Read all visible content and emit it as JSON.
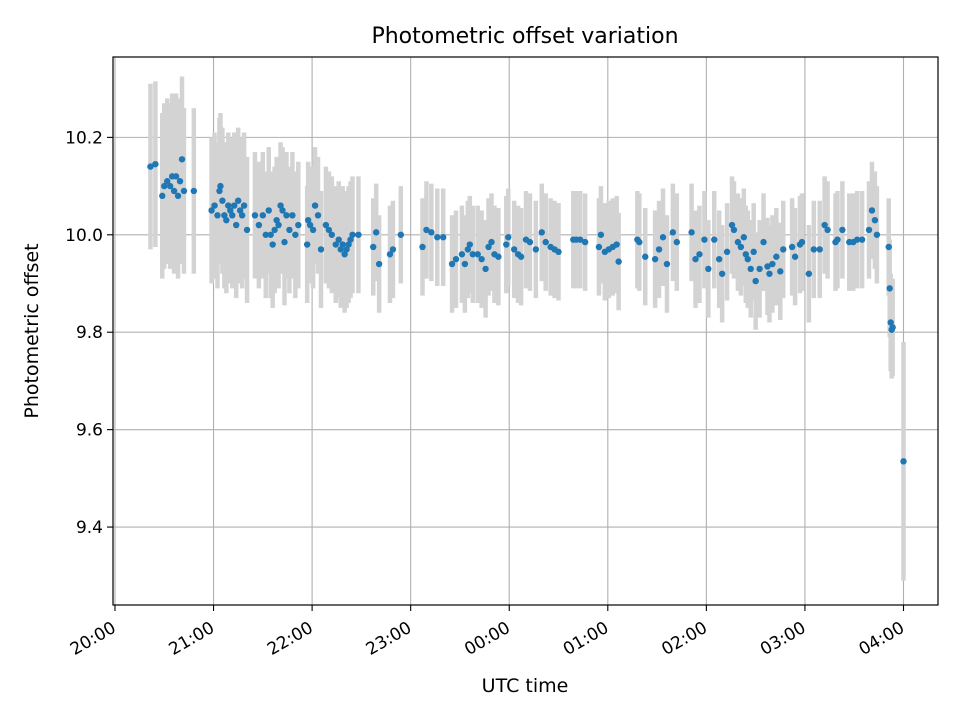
{
  "chart_data": {
    "type": "scatter",
    "title": "Photometric offset variation",
    "xlabel": "UTC time",
    "ylabel": "Photometric offset",
    "x_unit": "hours (UTC, continuing past midnight)",
    "xlim": [
      19.98,
      28.35
    ],
    "ylim": [
      9.24,
      10.365
    ],
    "grid": true,
    "legend": "none",
    "x_ticks": [
      {
        "value": 20,
        "label": "20:00"
      },
      {
        "value": 21,
        "label": "21:00"
      },
      {
        "value": 22,
        "label": "22:00"
      },
      {
        "value": 23,
        "label": "23:00"
      },
      {
        "value": 24,
        "label": "00:00"
      },
      {
        "value": 25,
        "label": "01:00"
      },
      {
        "value": 26,
        "label": "02:00"
      },
      {
        "value": 27,
        "label": "03:00"
      },
      {
        "value": 28,
        "label": "04:00"
      }
    ],
    "y_ticks": [
      {
        "value": 9.4,
        "label": "9.4"
      },
      {
        "value": 9.6,
        "label": "9.6"
      },
      {
        "value": 9.8,
        "label": "9.8"
      },
      {
        "value": 10.0,
        "label": "10.0"
      },
      {
        "value": 10.2,
        "label": "10.2"
      }
    ],
    "colors": {
      "points": "#1f77b4",
      "errorbars": "#d3d3d3",
      "grid": "#b0b0b0"
    },
    "series": [
      {
        "points": [
          [
            20.36,
            10.14,
            0.17
          ],
          [
            20.41,
            10.145,
            0.17
          ],
          [
            20.48,
            10.08,
            0.17
          ],
          [
            20.5,
            10.1,
            0.17
          ],
          [
            20.53,
            10.11,
            0.17
          ],
          [
            20.56,
            10.1,
            0.17
          ],
          [
            20.58,
            10.12,
            0.17
          ],
          [
            20.6,
            10.09,
            0.17
          ],
          [
            20.62,
            10.12,
            0.17
          ],
          [
            20.64,
            10.08,
            0.17
          ],
          [
            20.66,
            10.11,
            0.17
          ],
          [
            20.68,
            10.155,
            0.17
          ],
          [
            20.7,
            10.09,
            0.17
          ],
          [
            20.8,
            10.09,
            0.17
          ],
          [
            20.98,
            10.05,
            0.15
          ],
          [
            21.01,
            10.06,
            0.15
          ],
          [
            21.04,
            10.04,
            0.15
          ],
          [
            21.06,
            10.09,
            0.15
          ],
          [
            21.07,
            10.1,
            0.15
          ],
          [
            21.09,
            10.07,
            0.15
          ],
          [
            21.11,
            10.04,
            0.15
          ],
          [
            21.13,
            10.03,
            0.15
          ],
          [
            21.15,
            10.06,
            0.15
          ],
          [
            21.17,
            10.05,
            0.15
          ],
          [
            21.19,
            10.04,
            0.15
          ],
          [
            21.21,
            10.06,
            0.15
          ],
          [
            21.23,
            10.02,
            0.15
          ],
          [
            21.25,
            10.07,
            0.15
          ],
          [
            21.27,
            10.05,
            0.15
          ],
          [
            21.29,
            10.04,
            0.15
          ],
          [
            21.31,
            10.06,
            0.15
          ],
          [
            21.34,
            10.01,
            0.15
          ],
          [
            21.42,
            10.04,
            0.13
          ],
          [
            21.46,
            10.02,
            0.13
          ],
          [
            21.5,
            10.04,
            0.13
          ],
          [
            21.53,
            10.0,
            0.13
          ],
          [
            21.56,
            10.05,
            0.13
          ],
          [
            21.58,
            10.0,
            0.13
          ],
          [
            21.6,
            9.98,
            0.13
          ],
          [
            21.62,
            10.01,
            0.13
          ],
          [
            21.64,
            10.03,
            0.13
          ],
          [
            21.66,
            10.02,
            0.13
          ],
          [
            21.68,
            10.06,
            0.13
          ],
          [
            21.7,
            10.05,
            0.13
          ],
          [
            21.72,
            9.985,
            0.13
          ],
          [
            21.74,
            10.04,
            0.13
          ],
          [
            21.77,
            10.01,
            0.13
          ],
          [
            21.8,
            10.04,
            0.13
          ],
          [
            21.83,
            10.0,
            0.13
          ],
          [
            21.86,
            10.02,
            0.13
          ],
          [
            21.95,
            9.98,
            0.12
          ],
          [
            21.96,
            10.03,
            0.12
          ],
          [
            21.98,
            10.02,
            0.12
          ],
          [
            22.01,
            10.01,
            0.12
          ],
          [
            22.03,
            10.06,
            0.12
          ],
          [
            22.06,
            10.04,
            0.12
          ],
          [
            22.09,
            9.97,
            0.12
          ],
          [
            22.14,
            10.02,
            0.12
          ],
          [
            22.17,
            10.01,
            0.12
          ],
          [
            22.2,
            10.0,
            0.12
          ],
          [
            22.24,
            9.98,
            0.12
          ],
          [
            22.27,
            9.99,
            0.12
          ],
          [
            22.29,
            9.97,
            0.12
          ],
          [
            22.31,
            9.98,
            0.12
          ],
          [
            22.33,
            9.96,
            0.12
          ],
          [
            22.35,
            9.97,
            0.12
          ],
          [
            22.37,
            9.98,
            0.12
          ],
          [
            22.39,
            9.99,
            0.12
          ],
          [
            22.41,
            10.0,
            0.12
          ],
          [
            22.47,
            10.0,
            0.12
          ],
          [
            22.62,
            9.975,
            0.1
          ],
          [
            22.65,
            10.005,
            0.1
          ],
          [
            22.68,
            9.94,
            0.1
          ],
          [
            22.79,
            9.96,
            0.1
          ],
          [
            22.82,
            9.97,
            0.1
          ],
          [
            22.9,
            10.0,
            0.1
          ],
          [
            23.12,
            9.975,
            0.1
          ],
          [
            23.16,
            10.01,
            0.1
          ],
          [
            23.21,
            10.005,
            0.1
          ],
          [
            23.27,
            9.995,
            0.1
          ],
          [
            23.33,
            9.995,
            0.1
          ],
          [
            23.42,
            9.94,
            0.1
          ],
          [
            23.46,
            9.95,
            0.1
          ],
          [
            23.52,
            9.96,
            0.1
          ],
          [
            23.55,
            9.94,
            0.1
          ],
          [
            23.58,
            9.97,
            0.1
          ],
          [
            23.6,
            9.98,
            0.1
          ],
          [
            23.63,
            9.96,
            0.1
          ],
          [
            23.68,
            9.96,
            0.1
          ],
          [
            23.72,
            9.95,
            0.1
          ],
          [
            23.76,
            9.93,
            0.1
          ],
          [
            23.79,
            9.975,
            0.1
          ],
          [
            23.82,
            9.985,
            0.1
          ],
          [
            23.85,
            9.96,
            0.1
          ],
          [
            23.89,
            9.955,
            0.1
          ],
          [
            23.97,
            9.98,
            0.1
          ],
          [
            23.99,
            9.995,
            0.1
          ],
          [
            24.05,
            9.97,
            0.1
          ],
          [
            24.09,
            9.96,
            0.1
          ],
          [
            24.12,
            9.955,
            0.1
          ],
          [
            24.17,
            9.99,
            0.1
          ],
          [
            24.21,
            9.985,
            0.1
          ],
          [
            24.27,
            9.97,
            0.1
          ],
          [
            24.33,
            10.005,
            0.1
          ],
          [
            24.37,
            9.985,
            0.1
          ],
          [
            24.42,
            9.975,
            0.1
          ],
          [
            24.46,
            9.97,
            0.1
          ],
          [
            24.5,
            9.965,
            0.1
          ],
          [
            24.65,
            9.99,
            0.1
          ],
          [
            24.68,
            9.99,
            0.1
          ],
          [
            24.72,
            9.99,
            0.1
          ],
          [
            24.77,
            9.985,
            0.1
          ],
          [
            24.91,
            9.975,
            0.1
          ],
          [
            24.93,
            10.0,
            0.1
          ],
          [
            24.97,
            9.965,
            0.1
          ],
          [
            25.01,
            9.97,
            0.1
          ],
          [
            25.05,
            9.975,
            0.1
          ],
          [
            25.09,
            9.98,
            0.1
          ],
          [
            25.11,
            9.945,
            0.1
          ],
          [
            25.3,
            9.99,
            0.1
          ],
          [
            25.32,
            9.985,
            0.1
          ],
          [
            25.38,
            9.955,
            0.1
          ],
          [
            25.48,
            9.95,
            0.1
          ],
          [
            25.52,
            9.97,
            0.1
          ],
          [
            25.56,
            9.995,
            0.1
          ],
          [
            25.6,
            9.94,
            0.1
          ],
          [
            25.66,
            10.005,
            0.1
          ],
          [
            25.7,
            9.985,
            0.1
          ],
          [
            25.85,
            10.005,
            0.1
          ],
          [
            25.89,
            9.95,
            0.1
          ],
          [
            25.93,
            9.96,
            0.1
          ],
          [
            25.98,
            9.99,
            0.1
          ],
          [
            26.02,
            9.93,
            0.1
          ],
          [
            26.08,
            9.99,
            0.1
          ],
          [
            26.13,
            9.95,
            0.1
          ],
          [
            26.16,
            9.92,
            0.1
          ],
          [
            26.21,
            9.965,
            0.1
          ],
          [
            26.26,
            10.02,
            0.1
          ],
          [
            26.28,
            10.01,
            0.1
          ],
          [
            26.32,
            9.985,
            0.1
          ],
          [
            26.35,
            9.975,
            0.1
          ],
          [
            26.38,
            9.995,
            0.1
          ],
          [
            26.4,
            9.96,
            0.1
          ],
          [
            26.42,
            9.95,
            0.1
          ],
          [
            26.45,
            9.93,
            0.1
          ],
          [
            26.48,
            9.965,
            0.1
          ],
          [
            26.5,
            9.905,
            0.1
          ],
          [
            26.54,
            9.93,
            0.1
          ],
          [
            26.58,
            9.985,
            0.1
          ],
          [
            26.62,
            9.935,
            0.1
          ],
          [
            26.64,
            9.92,
            0.1
          ],
          [
            26.67,
            9.94,
            0.1
          ],
          [
            26.71,
            9.955,
            0.1
          ],
          [
            26.75,
            9.925,
            0.1
          ],
          [
            26.78,
            9.97,
            0.1
          ],
          [
            26.87,
            9.975,
            0.1
          ],
          [
            26.9,
            9.955,
            0.1
          ],
          [
            26.95,
            9.98,
            0.1
          ],
          [
            26.97,
            9.985,
            0.1
          ],
          [
            27.04,
            9.92,
            0.1
          ],
          [
            27.09,
            9.97,
            0.1
          ],
          [
            27.15,
            9.97,
            0.1
          ],
          [
            27.2,
            10.02,
            0.1
          ],
          [
            27.23,
            10.01,
            0.1
          ],
          [
            27.31,
            9.985,
            0.1
          ],
          [
            27.33,
            9.99,
            0.1
          ],
          [
            27.38,
            10.01,
            0.1
          ],
          [
            27.45,
            9.985,
            0.1
          ],
          [
            27.49,
            9.985,
            0.1
          ],
          [
            27.53,
            9.99,
            0.1
          ],
          [
            27.58,
            9.99,
            0.1
          ],
          [
            27.65,
            10.01,
            0.1
          ],
          [
            27.68,
            10.05,
            0.1
          ],
          [
            27.71,
            10.03,
            0.1
          ],
          [
            27.73,
            10.0,
            0.1
          ],
          [
            27.85,
            9.975,
            0.1
          ],
          [
            27.86,
            9.89,
            0.1
          ],
          [
            27.87,
            9.82,
            0.1
          ],
          [
            27.88,
            9.805,
            0.1
          ],
          [
            27.89,
            9.81,
            0.1
          ],
          [
            28.0,
            9.535,
            0.245
          ]
        ]
      }
    ]
  }
}
